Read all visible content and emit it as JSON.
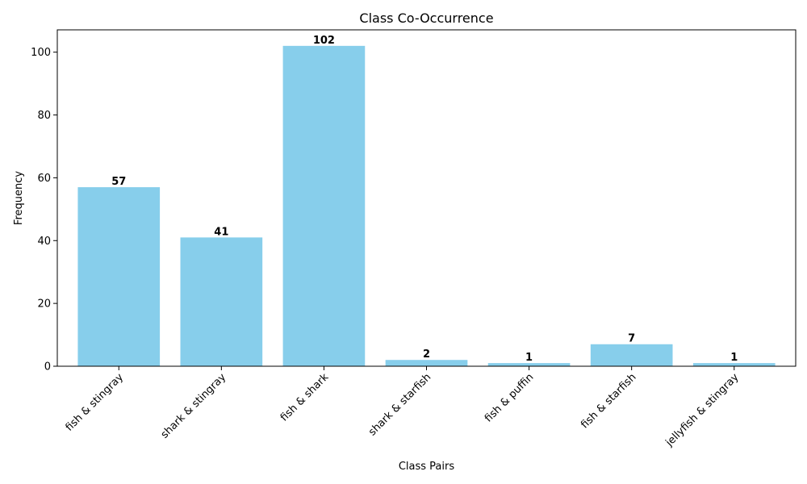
{
  "chart_data": {
    "type": "bar",
    "title": "Class Co-Occurrence",
    "xlabel": "Class Pairs",
    "ylabel": "Frequency",
    "categories": [
      "fish & stingray",
      "shark & stingray",
      "fish & shark",
      "shark & starfish",
      "fish & puffin",
      "fish & starfish",
      "jellyfish & stingray"
    ],
    "values": [
      57,
      41,
      102,
      2,
      1,
      7,
      1
    ],
    "data_labels": [
      "57",
      "41",
      "102",
      "2",
      "1",
      "7",
      "1"
    ],
    "ylim": [
      0,
      107.1
    ],
    "yticks": [
      0,
      20,
      40,
      60,
      80,
      100
    ],
    "ytick_labels": [
      "0",
      "20",
      "40",
      "60",
      "80",
      "100"
    ],
    "grid": false,
    "legend": "none",
    "x_tick_rotation_deg": 45,
    "colors": {
      "bar": "#87ceeb",
      "axis": "#000000",
      "background": "#ffffff"
    }
  }
}
